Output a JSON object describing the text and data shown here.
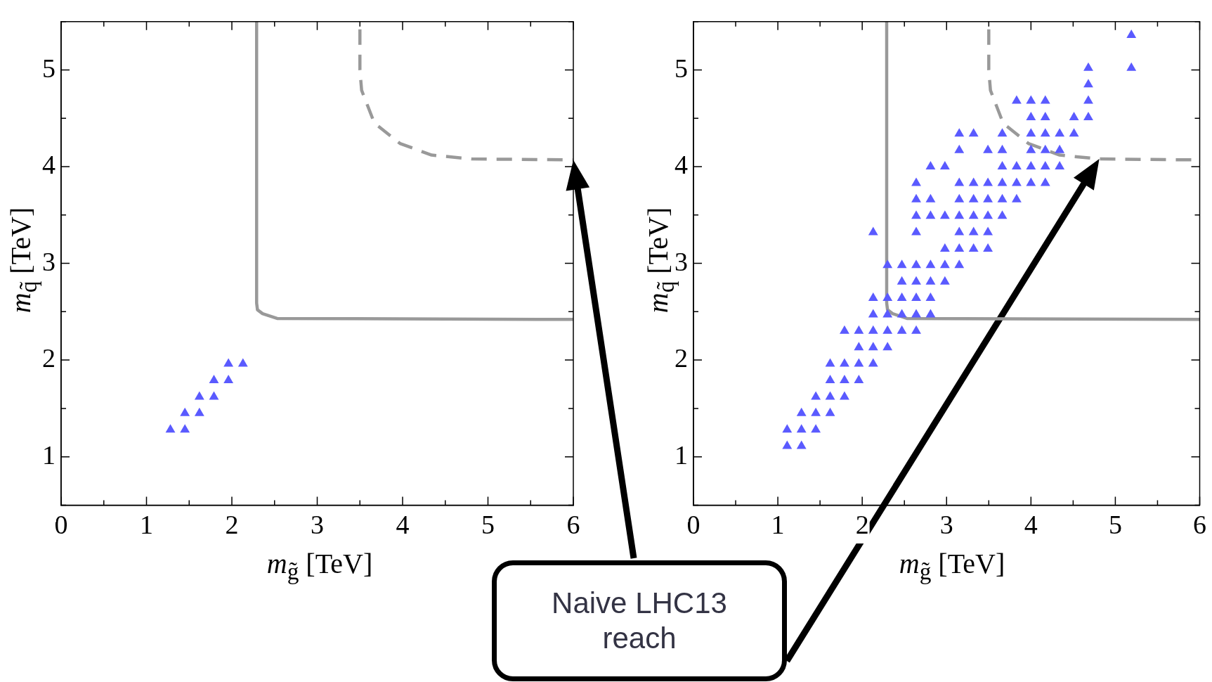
{
  "chart_data": [
    {
      "type": "scatter",
      "xlabel": "m$_{g̃}$ [TeV]",
      "ylabel": "m$_{q̃}$ [TeV]",
      "xlim": [
        0,
        6
      ],
      "ylim": [
        0.5,
        5.5
      ],
      "xticks": [
        0,
        {
          "value": 0.5,
          "label": null
        },
        1,
        {
          "value": 1.5,
          "label": null
        },
        2,
        {
          "value": 2.5,
          "label": null
        },
        3,
        {
          "value": 3.5,
          "label": null
        },
        4,
        {
          "value": 4.5,
          "label": null
        },
        5,
        {
          "value": 5.5,
          "label": null
        },
        6
      ],
      "yticks": [
        {
          "value": 0.5,
          "label": null
        },
        1,
        {
          "value": 1.5,
          "label": null
        },
        2,
        {
          "value": 2.5,
          "label": null
        },
        3,
        {
          "value": 3.5,
          "label": null
        },
        4,
        {
          "value": 4.5,
          "label": null
        },
        5,
        {
          "value": 5.5,
          "label": null
        }
      ],
      "grid": false,
      "legend": false,
      "annotations": [
        "Naive LHC13 reach"
      ],
      "series": [
        {
          "type": "scatter",
          "color": "#5a5aff",
          "marker": "triangle",
          "x": [
            1.28,
            1.45,
            1.45,
            1.62,
            1.62,
            1.79,
            1.79,
            1.96,
            1.96,
            2.13
          ],
          "values": [
            1.28,
            1.28,
            1.45,
            1.45,
            1.62,
            1.62,
            1.79,
            1.79,
            1.96,
            1.96
          ]
        },
        {
          "type": "line",
          "color": "#999999",
          "marker": "none",
          "line_style": "solid",
          "x": [
            2.29,
            2.29,
            2.3,
            2.36,
            2.53,
            6
          ],
          "values": [
            5.5,
            2.59,
            2.52,
            2.48,
            2.43,
            2.42
          ]
        },
        {
          "type": "line",
          "color": "#999999",
          "marker": "none",
          "line_style": "dashed",
          "x": [
            3.5,
            3.5,
            3.52,
            3.67,
            3.97,
            4.34,
            4.81,
            6
          ],
          "values": [
            5.42,
            5.0,
            4.79,
            4.45,
            4.24,
            4.12,
            4.08,
            4.07
          ]
        }
      ]
    },
    {
      "type": "scatter",
      "xlabel": "m$_{g̃}$ [TeV]",
      "ylabel": "m$_{q̃}$ [TeV]",
      "xlim": [
        0,
        6
      ],
      "ylim": [
        0.5,
        5.5
      ],
      "xticks": [
        0,
        {
          "value": 0.5,
          "label": null
        },
        1,
        {
          "value": 1.5,
          "label": null
        },
        2,
        {
          "value": 2.5,
          "label": null
        },
        3,
        {
          "value": 3.5,
          "label": null
        },
        4,
        {
          "value": 4.5,
          "label": null
        },
        5,
        {
          "value": 5.5,
          "label": null
        },
        6
      ],
      "yticks": [
        {
          "value": 0.5,
          "label": null
        },
        1,
        {
          "value": 1.5,
          "label": null
        },
        2,
        {
          "value": 2.5,
          "label": null
        },
        3,
        {
          "value": 3.5,
          "label": null
        },
        4,
        {
          "value": 4.5,
          "label": null
        },
        5,
        {
          "value": 5.5,
          "label": null
        }
      ],
      "grid": false,
      "legend": false,
      "series": [
        {
          "type": "scatter",
          "color": "#5a5aff",
          "marker": "triangle",
          "x": [
            1.11,
            1.28,
            1.11,
            1.28,
            1.45,
            1.28,
            1.45,
            1.62,
            1.45,
            1.62,
            1.79,
            1.62,
            1.79,
            1.96,
            1.62,
            1.79,
            1.96,
            2.13,
            1.96,
            2.13,
            2.3,
            1.79,
            1.96,
            2.13,
            2.3,
            2.47,
            2.64,
            2.13,
            2.3,
            2.47,
            2.64,
            2.81,
            2.13,
            2.3,
            2.47,
            2.64,
            2.81,
            2.47,
            2.64,
            2.81,
            2.98,
            2.3,
            2.47,
            2.64,
            2.81,
            2.98,
            3.15,
            2.98,
            3.15,
            3.32,
            3.49,
            2.13,
            2.64,
            3.15,
            3.32,
            3.49,
            2.64,
            2.81,
            2.98,
            3.15,
            3.32,
            3.49,
            3.66,
            2.64,
            2.81,
            3.15,
            3.32,
            3.49,
            3.66,
            3.83,
            2.64,
            3.15,
            3.32,
            3.49,
            3.66,
            3.83,
            4.0,
            4.17,
            2.81,
            2.98,
            3.66,
            3.83,
            4.0,
            4.17,
            4.34,
            3.15,
            3.49,
            3.66,
            4.0,
            4.17,
            4.34,
            3.15,
            3.32,
            3.66,
            4.0,
            4.17,
            4.34,
            4.51,
            4.0,
            4.17,
            4.51,
            4.68,
            3.83,
            4.0,
            4.17,
            4.68,
            4.68,
            4.68,
            5.19,
            5.19
          ],
          "values": [
            1.11,
            1.11,
            1.28,
            1.28,
            1.28,
            1.45,
            1.45,
            1.45,
            1.62,
            1.62,
            1.62,
            1.79,
            1.79,
            1.79,
            1.96,
            1.96,
            1.96,
            1.96,
            2.13,
            2.13,
            2.13,
            2.3,
            2.3,
            2.3,
            2.3,
            2.3,
            2.3,
            2.47,
            2.47,
            2.47,
            2.47,
            2.47,
            2.64,
            2.64,
            2.64,
            2.64,
            2.64,
            2.81,
            2.81,
            2.81,
            2.81,
            2.98,
            2.98,
            2.98,
            2.98,
            2.98,
            2.98,
            3.15,
            3.15,
            3.15,
            3.15,
            3.32,
            3.32,
            3.32,
            3.32,
            3.32,
            3.49,
            3.49,
            3.49,
            3.49,
            3.49,
            3.49,
            3.49,
            3.66,
            3.66,
            3.66,
            3.66,
            3.66,
            3.66,
            3.66,
            3.83,
            3.83,
            3.83,
            3.83,
            3.83,
            3.83,
            3.83,
            3.83,
            4.0,
            4.0,
            4.0,
            4.0,
            4.0,
            4.0,
            4.0,
            4.17,
            4.17,
            4.17,
            4.17,
            4.17,
            4.17,
            4.34,
            4.34,
            4.34,
            4.34,
            4.34,
            4.34,
            4.34,
            4.51,
            4.51,
            4.51,
            4.51,
            4.68,
            4.68,
            4.68,
            4.68,
            4.85,
            5.02,
            5.02,
            5.36
          ]
        },
        {
          "type": "line",
          "color": "#999999",
          "marker": "none",
          "line_style": "solid",
          "x": [
            2.29,
            2.29,
            2.3,
            2.36,
            2.53,
            6
          ],
          "values": [
            5.5,
            2.59,
            2.52,
            2.48,
            2.43,
            2.42
          ]
        },
        {
          "type": "line",
          "color": "#999999",
          "marker": "none",
          "line_style": "dashed",
          "x": [
            3.5,
            3.5,
            3.52,
            3.67,
            3.97,
            4.34,
            4.81,
            6
          ],
          "values": [
            5.42,
            5.0,
            4.79,
            4.45,
            4.24,
            4.12,
            4.08,
            4.07
          ]
        }
      ]
    }
  ]
}
